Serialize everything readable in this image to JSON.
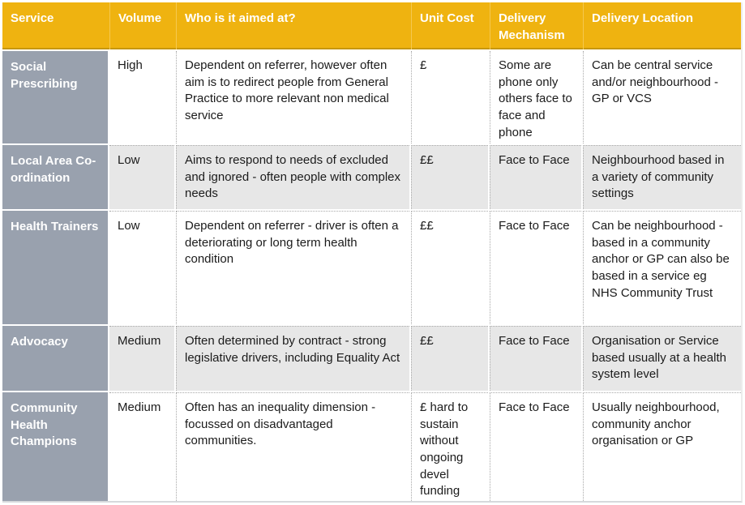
{
  "colors": {
    "header_bg": "#EFB310",
    "header_text": "#FFFFFF",
    "header_underline": "#C7970E",
    "service_column_bg": "#99A1AE",
    "service_column_text": "#FFFFFF",
    "alt_row_bg": "#E7E7E7",
    "row_bg": "#FFFFFF",
    "body_text": "#1B1B1B",
    "dotted_border": "#A8A8A8",
    "table_bottom_border": "#D6D9DC"
  },
  "table": {
    "columns": [
      "Service",
      "Volume",
      "Who is it aimed at?",
      "Unit Cost",
      "Delivery Mechanism",
      "Delivery Location"
    ],
    "rows": [
      {
        "service": "Social Prescribing",
        "volume": "High",
        "aimed_at": "Dependent on referrer, however often aim is to redirect people from General Practice to more relevant non medical service",
        "unit_cost": "£",
        "delivery_mechanism": "Some are phone only others face to face and phone",
        "delivery_location": "Can be central service and/or neighbourhood - GP or VCS"
      },
      {
        "service": "Local Area Co-ordination",
        "volume": "Low",
        "aimed_at": "Aims to respond to needs of excluded and ignored - often people with complex needs",
        "unit_cost": "££",
        "delivery_mechanism": "Face to Face",
        "delivery_location": "Neighbourhood based in a variety of community settings"
      },
      {
        "service": "Health Trainers",
        "volume": "Low",
        "aimed_at": "Dependent on referrer - driver is often a deteriorating or long term health condition",
        "unit_cost": "££",
        "delivery_mechanism": "Face to Face",
        "delivery_location": "Can be neighbourhood - based in a community anchor or GP can also be based in a service eg NHS Community Trust"
      },
      {
        "service": "Advocacy",
        "volume": "Medium",
        "aimed_at": "Often determined by contract - strong legislative drivers, including Equality Act",
        "unit_cost": "££",
        "delivery_mechanism": "Face to Face",
        "delivery_location": "Organisation or Service based usually at a health system level"
      },
      {
        "service": "Community Health Champions",
        "volume": "Medium",
        "aimed_at": "Often has an inequality dimension - focussed on disadvantaged communities.",
        "unit_cost": "£ hard to sustain without ongoing devel funding",
        "delivery_mechanism": "Face to Face",
        "delivery_location": "Usually neighbourhood, community anchor organisation or GP"
      }
    ]
  }
}
